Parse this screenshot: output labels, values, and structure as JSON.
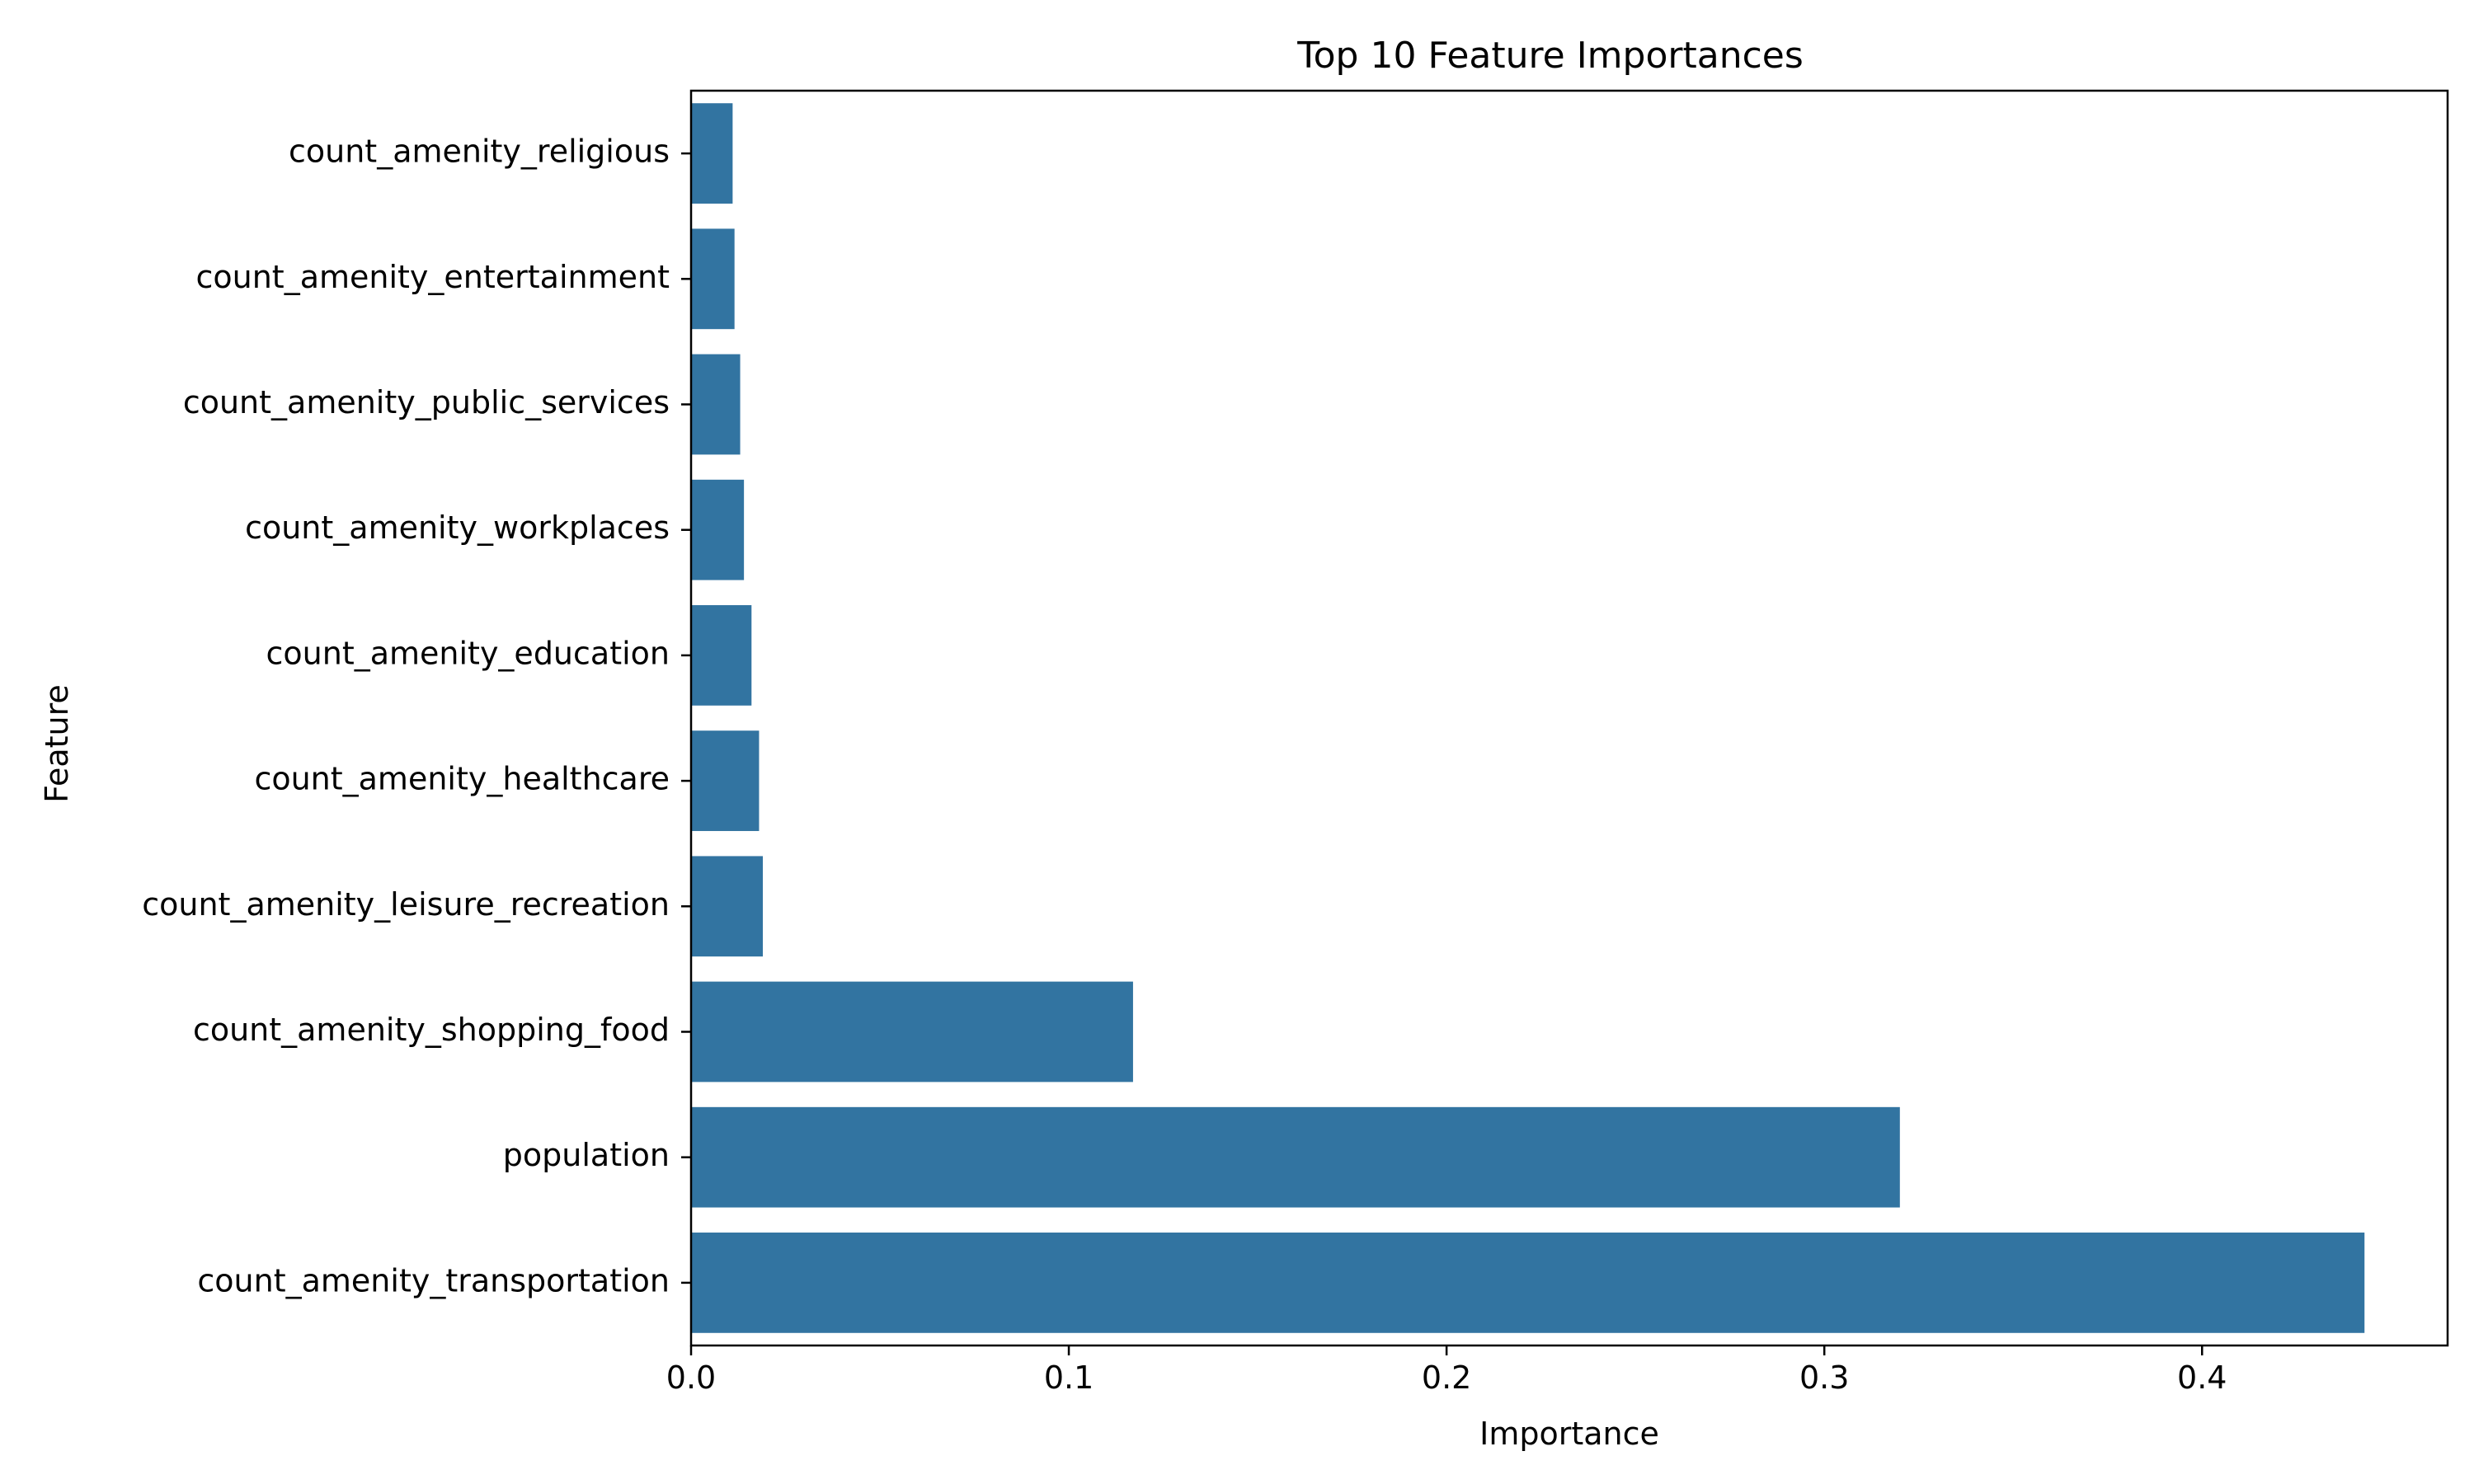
{
  "chart_data": {
    "type": "bar",
    "orientation": "horizontal",
    "title": "Top 10 Feature Importances",
    "xlabel": "Importance",
    "ylabel": "Feature",
    "categories": [
      "count_amenity_religious",
      "count_amenity_entertainment",
      "count_amenity_public_services",
      "count_amenity_workplaces",
      "count_amenity_education",
      "count_amenity_healthcare",
      "count_amenity_leisure_recreation",
      "count_amenity_shopping_food",
      "population",
      "count_amenity_transportation"
    ],
    "values": [
      0.011,
      0.0115,
      0.013,
      0.014,
      0.016,
      0.018,
      0.019,
      0.117,
      0.32,
      0.443
    ],
    "xlim": [
      0,
      0.465
    ],
    "xticks": [
      0.0,
      0.1,
      0.2,
      0.3,
      0.4
    ],
    "xtick_labels": [
      "0.0",
      "0.1",
      "0.2",
      "0.3",
      "0.4"
    ],
    "bar_color": "#3274a1",
    "grid": false,
    "legend": "none"
  }
}
